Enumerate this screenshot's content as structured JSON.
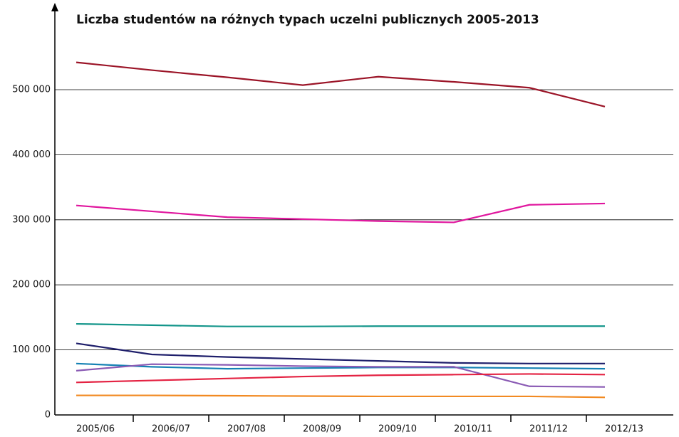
{
  "chart_data": {
    "type": "line",
    "title": "Liczba studentów na różnych typach uczelni publicznych 2005-2013",
    "categories": [
      "2005/06",
      "2006/07",
      "2007/08",
      "2008/09",
      "2009/10",
      "2010/11",
      "2011/12",
      "2012/13"
    ],
    "series": [
      {
        "color": "#9b1427",
        "values": [
          542000,
          530000,
          519000,
          507000,
          520000,
          512000,
          503000,
          474000
        ]
      },
      {
        "color": "#e0169e",
        "values": [
          322000,
          313000,
          304000,
          301000,
          298000,
          296000,
          323000,
          325000
        ]
      },
      {
        "color": "#13958a",
        "values": [
          140000,
          138000,
          136000,
          136000,
          136500,
          136500,
          136500,
          136500
        ]
      },
      {
        "color": "#1f1f6b",
        "values": [
          110000,
          93000,
          89000,
          86000,
          83000,
          80000,
          79000,
          79000
        ]
      },
      {
        "color": "#1682b4",
        "values": [
          79000,
          74000,
          71000,
          72000,
          73000,
          73000,
          72000,
          71000
        ]
      },
      {
        "color": "#8a5ab4",
        "values": [
          68000,
          78000,
          77000,
          75000,
          74000,
          74000,
          44000,
          43000
        ]
      },
      {
        "color": "#e42343",
        "values": [
          50000,
          53000,
          56000,
          59000,
          61000,
          62000,
          63000,
          62000
        ]
      },
      {
        "color": "#f28a22",
        "values": [
          30000,
          30000,
          29500,
          29000,
          28500,
          28500,
          28500,
          27000
        ]
      }
    ],
    "ylim": [
      0,
      625000
    ],
    "yticks": [
      0,
      {
        "value": 100000,
        "label": "100 000"
      },
      {
        "value": 200000,
        "label": "200 000"
      },
      {
        "value": 300000,
        "label": "300 000"
      },
      {
        "value": 400000,
        "label": "400 000"
      },
      {
        "value": 500000,
        "label": "500 000"
      }
    ],
    "grid": true
  }
}
